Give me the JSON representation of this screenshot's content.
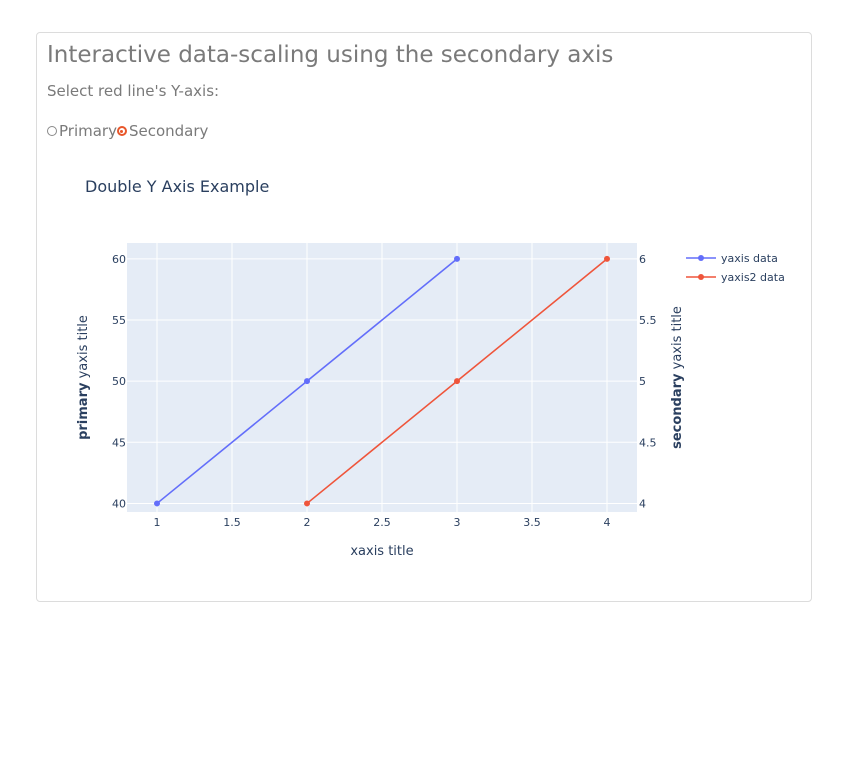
{
  "page": {
    "title": "Interactive data-scaling using the secondary axis",
    "prompt": "Select red line's Y-axis:",
    "radio": {
      "options": [
        "Primary",
        "Secondary"
      ],
      "selected": "Secondary",
      "accent": "#e8562a"
    }
  },
  "chart_data": {
    "type": "line",
    "title": "Double Y Axis Example",
    "xlabel": "xaxis title",
    "ylabel_bold": "primary",
    "ylabel_rest": " yaxis title",
    "y2label_bold": "secondary",
    "y2label_rest": " yaxis title",
    "xlim": [
      0.8,
      4.2
    ],
    "ylim": [
      39.3,
      61.3
    ],
    "y2lim": [
      3.93,
      6.13
    ],
    "xticks": [
      1,
      1.5,
      2,
      2.5,
      3,
      3.5,
      4
    ],
    "yticks": [
      40,
      45,
      50,
      55,
      60
    ],
    "y2ticks": [
      4,
      4.5,
      5,
      5.5,
      6
    ],
    "grid": true,
    "legend_position": "top-right",
    "plot_bg": "#e5ecf6",
    "series": [
      {
        "name": "yaxis data",
        "axis": "y",
        "color": "#636efa",
        "x": [
          1,
          2,
          3
        ],
        "y": [
          40,
          50,
          60
        ]
      },
      {
        "name": "yaxis2 data",
        "axis": "y2",
        "color": "#ef553b",
        "x": [
          2,
          3,
          4
        ],
        "y": [
          4,
          5,
          6
        ]
      }
    ]
  }
}
